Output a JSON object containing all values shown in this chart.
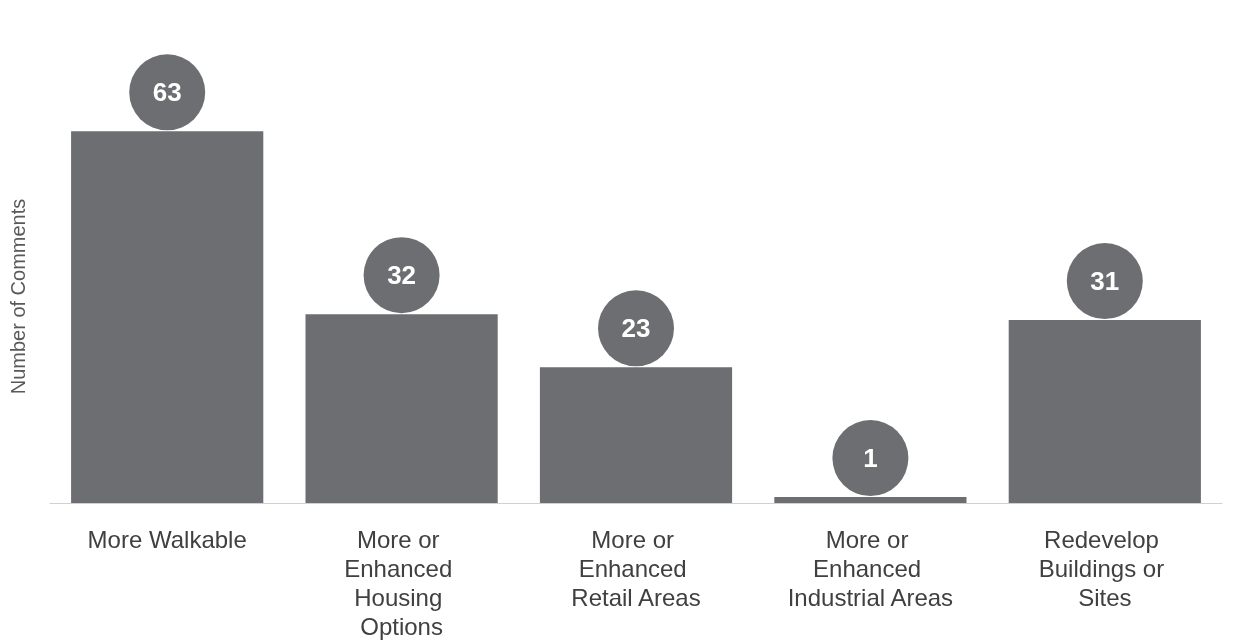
{
  "chart_data": {
    "type": "bar",
    "ylabel": "Number of Comments",
    "categories": [
      "More Walkable",
      "More or Enhanced Housing Options",
      "More or Enhanced Retail Areas",
      "More or Enhanced Industrial Areas",
      "Redevelop Buildings or Sites"
    ],
    "values": [
      63,
      32,
      23,
      1,
      31
    ],
    "color": "#6d6e71",
    "data_labels": true,
    "grid": false
  }
}
